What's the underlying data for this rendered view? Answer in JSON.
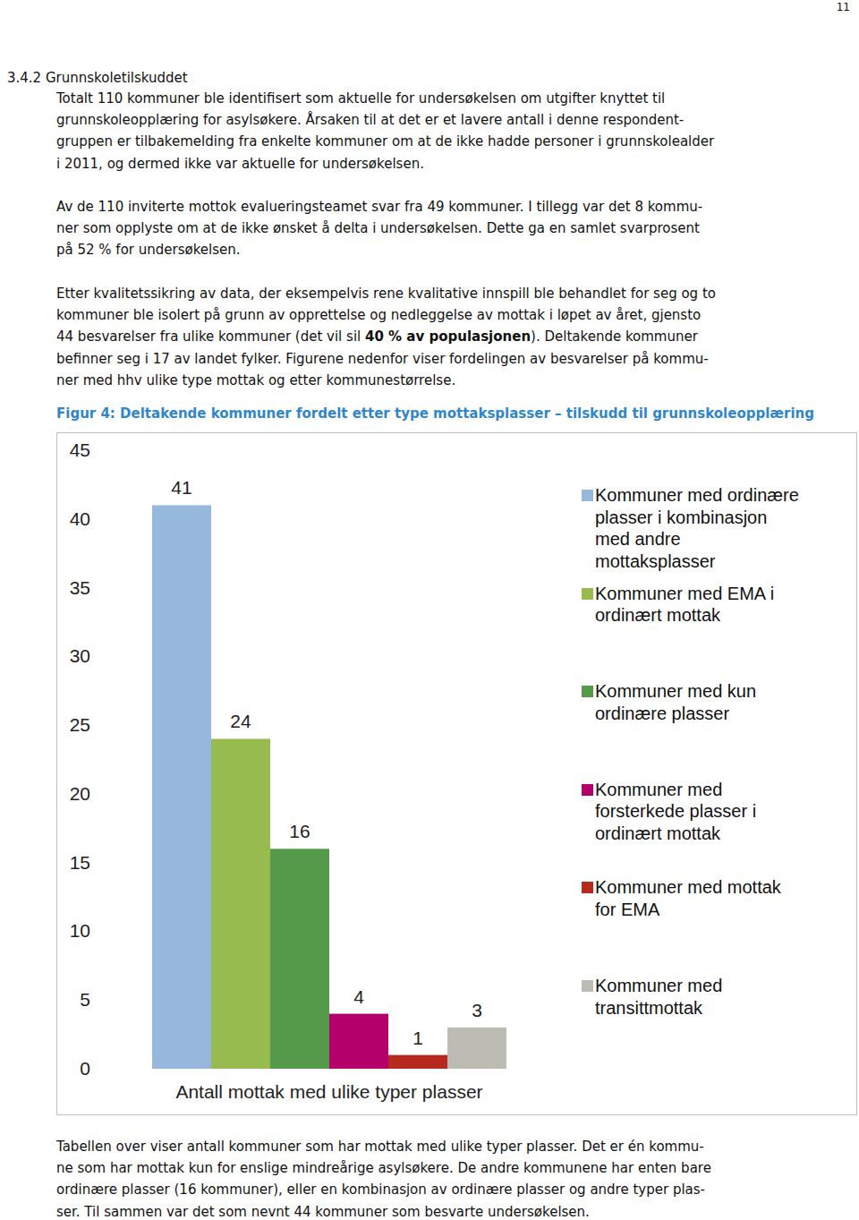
{
  "page": {
    "page_number": "11",
    "heading": "3.4.2 Grunnskoletilskuddet",
    "paragraphs": [
      {
        "lines": [
          [
            {
              "text": "Totalt 110 kommuner ble identifisert som aktuelle for undersøkelsen om utgifter knyttet til",
              "bold": false
            }
          ],
          [
            {
              "text": "grunnskoleopplæring for asylsøkere. Årsaken til at det er et lavere antall i denne respondent-",
              "bold": false
            }
          ],
          [
            {
              "text": "gruppen er tilbakemelding fra enkelte kommuner om at de ikke hadde personer i grunnskolealder",
              "bold": false
            }
          ],
          [
            {
              "text": "i 2011, og dermed ikke var aktuelle for undersøkelsen.",
              "bold": false
            }
          ]
        ]
      },
      {
        "lines": [
          [
            {
              "text": "Av de 110 inviterte mottok evalueringsteamet svar fra 49 kommuner. I tillegg var det 8 kommu-",
              "bold": false
            }
          ],
          [
            {
              "text": "ner som opplyste om at de ikke ønsket å delta i undersøkelsen. Dette ga en samlet svarprosent",
              "bold": false
            }
          ],
          [
            {
              "text": "på 52 % for undersøkelsen.",
              "bold": false
            }
          ]
        ]
      },
      {
        "lines": [
          [
            {
              "text": "Etter kvalitetssikring av data, der eksempelvis rene kvalitative innspill ble behandlet for seg og to",
              "bold": false
            }
          ],
          [
            {
              "text": "kommuner ble isolert på grunn av opprettelse og nedleggelse av mottak i løpet av året, gjensto",
              "bold": false
            }
          ],
          [
            {
              "text": "44 besvarelser fra ulike kommuner (det vil sil ",
              "bold": false
            },
            {
              "text": "40 % av populasjonen",
              "bold": true
            },
            {
              "text": "). Deltakende kommuner",
              "bold": false
            }
          ],
          [
            {
              "text": "befinner seg i 17 av landet fylker. Figurene nedenfor viser fordelingen av besvarelser på kommu-",
              "bold": false
            }
          ],
          [
            {
              "text": "ner med hhv ulike type mottak og etter kommunestørrelse.",
              "bold": false
            }
          ]
        ]
      }
    ],
    "closing": {
      "lines": [
        [
          {
            "text": "Tabellen over viser antall kommuner som har mottak med ulike typer plasser. Det er én kommu-",
            "bold": false
          }
        ],
        [
          {
            "text": "ne som har mottak kun for enslige mindreårige asylsøkere. De andre kommunene har enten bare",
            "bold": false
          }
        ],
        [
          {
            "text": "ordinære plasser (16 kommuner), eller en kombinasjon av ordinære plasser og andre typer plas-",
            "bold": false
          }
        ],
        [
          {
            "text": "ser. Til sammen var det som nevnt 44 kommuner som besvarte undersøkelsen.",
            "bold": false
          }
        ]
      ]
    }
  },
  "chart_data": {
    "type": "bar",
    "title": "Figur 4: Deltakende kommuner fordelt etter type mottaksplasser – tilskudd til grunnskoleopplæring",
    "categories": [
      "Antall mottak med ulike typer plasser"
    ],
    "series": [
      {
        "name": "Kommuner med ordinære plasser i kombinasjon med andre mottaksplasser",
        "color": "#95b8dc",
        "values": [
          41
        ]
      },
      {
        "name": "Kommuner med EMA i ordinært mottak",
        "color": "#97bb4e",
        "values": [
          24
        ]
      },
      {
        "name": "Kommuner med kun ordinære plasser",
        "color": "#55994a",
        "values": [
          16
        ]
      },
      {
        "name": "Kommuner med forsterkede plasser i ordinært mottak",
        "color": "#b3006a",
        "values": [
          4
        ]
      },
      {
        "name": "Kommuner med mottak for EMA",
        "color": "#b52a1c",
        "values": [
          1
        ]
      },
      {
        "name": "Kommuner med transittmottak",
        "color": "#bdbcb4",
        "values": [
          3
        ]
      }
    ],
    "ylim": [
      0,
      45
    ],
    "yticks": [
      0,
      5,
      10,
      15,
      20,
      25,
      30,
      35,
      40,
      45
    ],
    "data_labels": true,
    "legend": "right",
    "grid": false
  }
}
